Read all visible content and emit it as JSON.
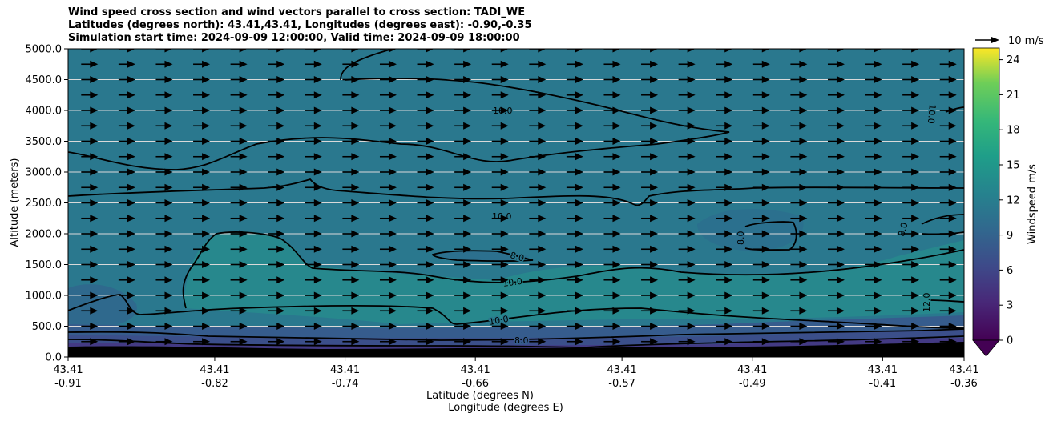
{
  "title_lines": [
    "Wind speed cross section and wind vectors parallel to cross section: TADI_WE",
    "Latitudes (degrees north): 43.41,43.41, Longitudes (degrees east): -0.90,-0.35",
    "Simulation start time: 2024-09-09 12:00:00, Valid time: 2024-09-09 18:00:00"
  ],
  "chart_data": {
    "type": "heatmap",
    "subtype": "filled contour cross section with wind vectors",
    "ylabel": "Altitude (meters)",
    "xlabel_lat": "Latitude (degrees N)",
    "xlabel_lon": "Longitude (degrees E)",
    "ylim": [
      0,
      5000
    ],
    "y_ticks": [
      "0.0",
      "500.0",
      "1000.0",
      "1500.0",
      "2000.0",
      "2500.0",
      "3000.0",
      "3500.0",
      "4000.0",
      "4500.0",
      "5000.0"
    ],
    "x_ticks": [
      {
        "lat": "43.41",
        "lon": "-0.91"
      },
      {
        "lat": "43.41",
        "lon": "-0.82"
      },
      {
        "lat": "43.41",
        "lon": "-0.74"
      },
      {
        "lat": "43.41",
        "lon": "-0.66"
      },
      {
        "lat": "43.41",
        "lon": "-0.57"
      },
      {
        "lat": "43.41",
        "lon": "-0.49"
      },
      {
        "lat": "43.41",
        "lon": "-0.41"
      },
      {
        "lat": "43.41",
        "lon": "-0.36"
      }
    ],
    "lon_range": [
      -0.91,
      -0.36
    ],
    "grid": "horizontal",
    "colorbar": {
      "label": "Windspeed m/s",
      "ticks": [
        "0",
        "3",
        "6",
        "9",
        "12",
        "15",
        "18",
        "21",
        "24"
      ],
      "range": [
        0,
        25
      ],
      "extend": "min",
      "colormap": "viridis"
    },
    "quiver_key": {
      "label": "10 m/s",
      "value": 10
    },
    "contour_labels": [
      "10.0",
      "10.0",
      "8.0",
      "10.0",
      "10.0",
      "8.0",
      "8.0",
      "10.0",
      "8.0",
      "12.0"
    ],
    "wind_direction": "eastward (parallel to cross section)",
    "vector_rows_altitudes_m": [
      250,
      500,
      750,
      1000,
      1250,
      1500,
      1750,
      2000,
      2250,
      2500,
      2750,
      3000,
      3250,
      3500,
      3750,
      4000,
      4250,
      4500,
      4750,
      5000
    ],
    "vector_columns": 24,
    "colors": {
      "background_field": "#2a788e",
      "terrain": "#000000",
      "grid": "#d9d9d9",
      "contour": "#000000"
    }
  }
}
